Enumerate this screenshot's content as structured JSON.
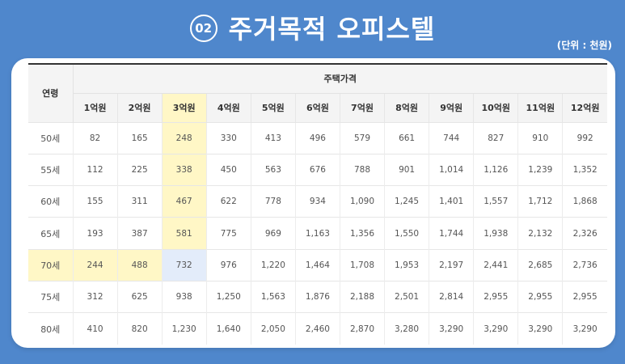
{
  "header": {
    "number": "02",
    "title": "주거목적 오피스텔",
    "unit": "(단위 : 천원)"
  },
  "table": {
    "age_header": "연령",
    "group_header": "주택가격",
    "price_columns": [
      "1억원",
      "2억원",
      "3억원",
      "4억원",
      "5억원",
      "6억원",
      "7억원",
      "8억원",
      "9억원",
      "10억원",
      "11억원",
      "12억원"
    ],
    "rows": [
      {
        "age": "50세",
        "values": [
          "82",
          "165",
          "248",
          "330",
          "413",
          "496",
          "579",
          "661",
          "744",
          "827",
          "910",
          "992"
        ]
      },
      {
        "age": "55세",
        "values": [
          "112",
          "225",
          "338",
          "450",
          "563",
          "676",
          "788",
          "901",
          "1,014",
          "1,126",
          "1,239",
          "1,352"
        ]
      },
      {
        "age": "60세",
        "values": [
          "155",
          "311",
          "467",
          "622",
          "778",
          "934",
          "1,090",
          "1,245",
          "1,401",
          "1,557",
          "1,712",
          "1,868"
        ]
      },
      {
        "age": "65세",
        "values": [
          "193",
          "387",
          "581",
          "775",
          "969",
          "1,163",
          "1,356",
          "1,550",
          "1,744",
          "1,938",
          "2,132",
          "2,326"
        ]
      },
      {
        "age": "70세",
        "values": [
          "244",
          "488",
          "732",
          "976",
          "1,220",
          "1,464",
          "1,708",
          "1,953",
          "2,197",
          "2,441",
          "2,685",
          "2,736"
        ]
      },
      {
        "age": "75세",
        "values": [
          "312",
          "625",
          "938",
          "1,250",
          "1,563",
          "1,876",
          "2,188",
          "2,501",
          "2,814",
          "2,955",
          "2,955",
          "2,955"
        ]
      },
      {
        "age": "80세",
        "values": [
          "410",
          "820",
          "1,230",
          "1,640",
          "2,050",
          "2,460",
          "2,870",
          "3,280",
          "3,290",
          "3,290",
          "3,290",
          "3,290"
        ]
      }
    ],
    "highlight_column": "3억원",
    "highlight_row": "70세",
    "highlight_color": "#fff7c6",
    "cross_color": "#e3ecfa"
  },
  "colors": {
    "background": "#4f87cc",
    "card": "#ffffff"
  }
}
